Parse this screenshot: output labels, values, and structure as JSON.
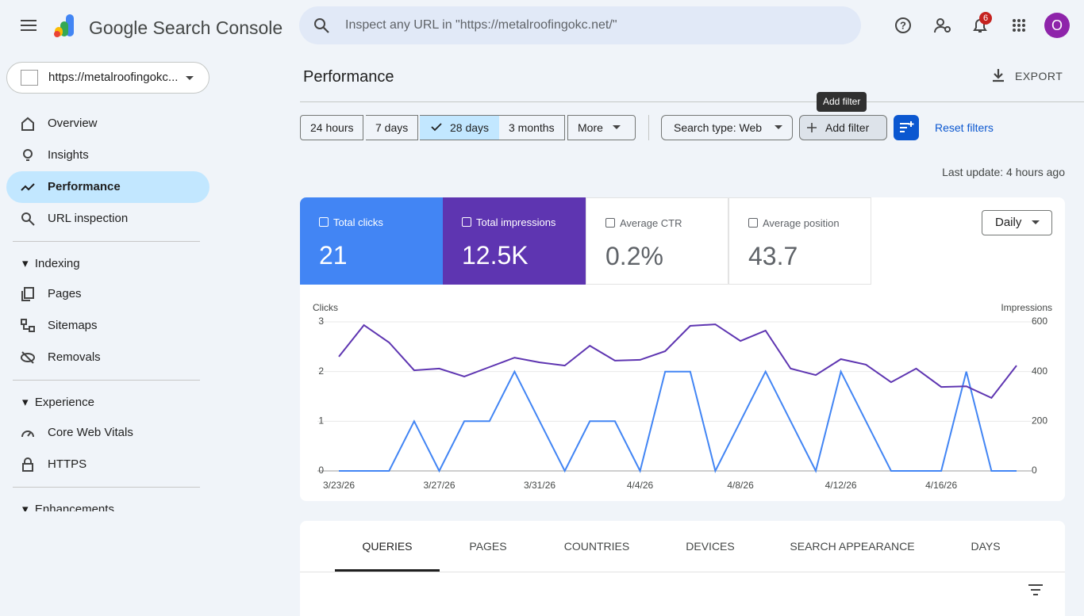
{
  "header": {
    "product": "Google Search Console",
    "search_placeholder": "Inspect any URL in \"https://metalroofingokc.net/\"",
    "notifications": "6",
    "avatar": "O"
  },
  "property": "https://metalroofingokc...",
  "nav": {
    "top": [
      "Overview",
      "Insights",
      "Performance",
      "URL inspection"
    ],
    "sections": [
      {
        "title": "Indexing",
        "items": [
          "Pages",
          "Sitemaps",
          "Removals"
        ]
      },
      {
        "title": "Experience",
        "items": [
          "Core Web Vitals",
          "HTTPS"
        ]
      },
      {
        "title": "Enhancements"
      }
    ]
  },
  "page": {
    "title": "Performance",
    "export": "EXPORT",
    "date_ranges": [
      "24 hours",
      "7 days",
      "28 days",
      "3 months",
      "More"
    ],
    "search_type": "Search type: Web",
    "add_filter": "Add filter",
    "tooltip": "Add filter",
    "reset": "Reset filters",
    "last_update": "Last update: 4 hours ago",
    "granularity": "Daily"
  },
  "metrics": [
    {
      "label": "Total clicks",
      "value": "21"
    },
    {
      "label": "Total impressions",
      "value": "12.5K"
    },
    {
      "label": "Average CTR",
      "value": "0.2%"
    },
    {
      "label": "Average position",
      "value": "43.7"
    }
  ],
  "chart_data": {
    "type": "line",
    "y_label": "Clicks",
    "y2_label": "Impressions",
    "categories": [
      "3/23/26",
      null,
      null,
      null,
      "3/27/26",
      null,
      null,
      null,
      "3/31/26",
      null,
      null,
      null,
      "4/4/26",
      null,
      null,
      null,
      "4/8/26",
      null,
      null,
      null,
      "4/12/26",
      null,
      null,
      null,
      "4/16/26",
      null,
      null,
      null
    ],
    "series": [
      {
        "name": "Clicks",
        "color": "#4285f4",
        "values": [
          0,
          0,
          0,
          1,
          0,
          1,
          1,
          2,
          1,
          0,
          1,
          1,
          0,
          2,
          2,
          0,
          1,
          2,
          1,
          0,
          2,
          1,
          0,
          0,
          0,
          2,
          0,
          0
        ]
      },
      {
        "name": "Impressions",
        "color": "#5e35b1",
        "axis": "y2",
        "values": [
          460,
          587,
          517,
          405,
          412,
          380,
          418,
          456,
          437,
          424,
          504,
          444,
          447,
          482,
          584,
          590,
          523,
          565,
          412,
          386,
          450,
          428,
          357,
          412,
          338,
          341,
          294,
          424
        ]
      }
    ],
    "ylim": [
      0,
      3
    ],
    "yticks": [
      0,
      1,
      2,
      3
    ],
    "y2lim": [
      0,
      600
    ],
    "y2ticks": [
      0,
      200,
      400,
      600
    ],
    "grid": true
  },
  "tabs": [
    "QUERIES",
    "PAGES",
    "COUNTRIES",
    "DEVICES",
    "SEARCH APPEARANCE",
    "DAYS"
  ]
}
